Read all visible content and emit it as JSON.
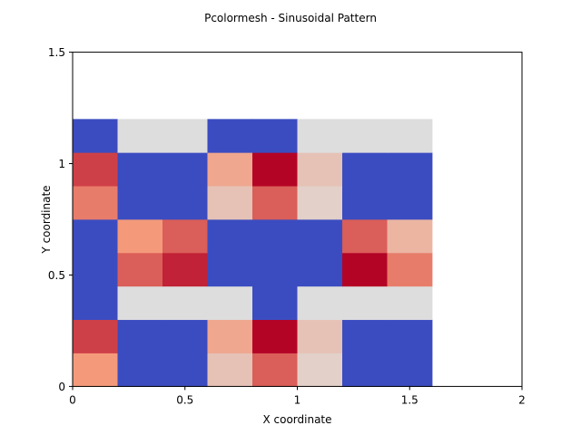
{
  "chart_data": {
    "type": "heatmap",
    "title": "Pcolormesh - Sinusoidal Pattern",
    "xlabel": "X coordinate",
    "ylabel": "Y coordinate",
    "xlim": [
      0,
      2
    ],
    "ylim": [
      0,
      1.5
    ],
    "xticks": [
      0,
      0.5,
      1,
      1.5,
      2
    ],
    "xtick_labels": [
      "0",
      "0.5",
      "1",
      "1.5",
      "2"
    ],
    "yticks": [
      0,
      0.5,
      1,
      1.5
    ],
    "ytick_labels": [
      "0",
      "0.5",
      "1",
      "1.5"
    ],
    "grid": false,
    "colormap": "coolwarm",
    "vmin": -1,
    "vmax": 1,
    "x_edges": [
      0,
      0.2,
      0.4,
      0.6,
      0.8,
      1.0,
      1.2,
      1.4,
      1.6
    ],
    "y_edges": [
      0,
      0.15,
      0.3,
      0.45,
      0.6,
      0.75,
      0.9,
      1.05,
      1.2
    ],
    "values": [
      [
        0.5,
        -1,
        -1,
        0.2,
        0.7,
        0.1,
        -1,
        -1
      ],
      [
        0.8,
        -1,
        -1,
        0.4,
        1.0,
        0.2,
        -1,
        -1
      ],
      [
        -1,
        0.0,
        0.0,
        0.0,
        -1,
        0.0,
        0.0,
        0.0
      ],
      [
        -1,
        0.7,
        0.9,
        -1,
        -1,
        -1,
        1.0,
        0.6
      ],
      [
        -1,
        0.5,
        0.7,
        -1,
        -1,
        -1,
        0.7,
        0.3
      ],
      [
        0.6,
        -1,
        -1,
        0.2,
        0.7,
        0.1,
        -1,
        -1
      ],
      [
        0.8,
        -1,
        -1,
        0.4,
        1.0,
        0.2,
        -1,
        -1
      ],
      [
        -1,
        0.0,
        0.0,
        -1,
        -1,
        0.0,
        0.0,
        0.0
      ]
    ]
  }
}
